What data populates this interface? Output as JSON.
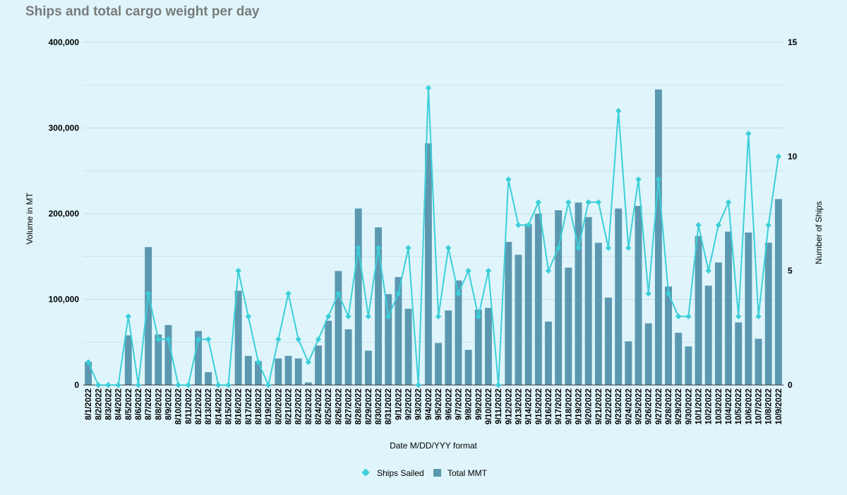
{
  "chart_data": {
    "type": "bar",
    "title": "Ships and total cargo weight per day",
    "xlabel": "Date M/DD/YYY format",
    "ylabel_left": "Volume in MT",
    "ylabel_right": "Number of Ships",
    "ylim_left": [
      0,
      400000
    ],
    "ylim_right": [
      0,
      15
    ],
    "yticks_left": [
      "0",
      "100,000",
      "200,000",
      "300,000",
      "400,000"
    ],
    "yticks_right": [
      "0",
      "5",
      "10",
      "15"
    ],
    "grid": true,
    "legend_position": "bottom",
    "colors": {
      "bar": "#5b98b0",
      "line": "#3ccfd9",
      "grid": "#c4dde2",
      "title": "#7a7a7a"
    },
    "categories": [
      "8/1/2022",
      "8/2/2022",
      "8/3/2022",
      "8/4/2022",
      "8/5/2022",
      "8/6/2022",
      "8/7/2022",
      "8/8/2022",
      "8/9/2022",
      "8/10/2022",
      "8/11/2022",
      "8/12/2022",
      "8/13/2022",
      "8/14/2022",
      "8/15/2022",
      "8/16/2022",
      "8/17/2022",
      "8/18/2022",
      "8/19/2022",
      "8/20/2022",
      "8/21/2022",
      "8/22/2022",
      "8/23/2022",
      "8/24/2022",
      "8/25/2022",
      "8/26/2022",
      "8/27/2022",
      "8/28/2022",
      "8/29/2022",
      "8/30/2022",
      "8/31/2022",
      "9/1/2022",
      "9/2/2022",
      "9/3/2022",
      "9/4/2022",
      "9/5/2022",
      "9/6/2022",
      "9/7/2022",
      "9/8/2022",
      "9/9/2022",
      "9/10/2022",
      "9/11/2022",
      "9/12/2022",
      "9/13/2022",
      "9/14/2022",
      "9/15/2022",
      "9/16/2022",
      "9/17/2022",
      "9/18/2022",
      "9/19/2022",
      "9/20/2022",
      "9/21/2022",
      "9/22/2022",
      "9/23/2022",
      "9/24/2022",
      "9/25/2022",
      "9/26/2022",
      "9/27/2022",
      "9/28/2022",
      "9/29/2022",
      "9/30/2022",
      "10/1/2022",
      "10/2/2022",
      "10/3/2022",
      "10/4/2022",
      "10/5/2022",
      "10/6/2022",
      "10/7/2022",
      "10/8/2022",
      "10/9/2022"
    ],
    "series": [
      {
        "name": "Total MMT",
        "type": "bar",
        "axis": "left",
        "values": [
          27000,
          0,
          0,
          0,
          58000,
          0,
          161000,
          59000,
          70000,
          0,
          0,
          63000,
          15000,
          0,
          0,
          110000,
          34000,
          28000,
          0,
          31000,
          34000,
          31000,
          3000,
          46000,
          75000,
          133000,
          65000,
          206000,
          40000,
          184000,
          106000,
          126000,
          89000,
          0,
          282000,
          49000,
          87000,
          122000,
          41000,
          88000,
          90000,
          0,
          167000,
          152000,
          188000,
          200000,
          74000,
          204000,
          137000,
          213000,
          196000,
          166000,
          102000,
          206000,
          51000,
          209000,
          72000,
          345000,
          115000,
          61000,
          45000,
          174000,
          116000,
          143000,
          179000,
          73000,
          178000,
          54000,
          166000,
          217000
        ]
      },
      {
        "name": "Ships Sailed",
        "type": "line",
        "axis": "right",
        "values": [
          1,
          0,
          0,
          0,
          3,
          0,
          4,
          2,
          2,
          0,
          0,
          2,
          2,
          0,
          0,
          5,
          3,
          1,
          0,
          2,
          4,
          2,
          1,
          2,
          3,
          4,
          3,
          6,
          3,
          6,
          3,
          4,
          6,
          0,
          13,
          3,
          6,
          4,
          5,
          3,
          5,
          0,
          9,
          7,
          7,
          8,
          5,
          6,
          8,
          6,
          8,
          8,
          6,
          12,
          6,
          9,
          4,
          9,
          4,
          3,
          3,
          7,
          5,
          7,
          8,
          3,
          11,
          3,
          7,
          10
        ]
      }
    ]
  }
}
